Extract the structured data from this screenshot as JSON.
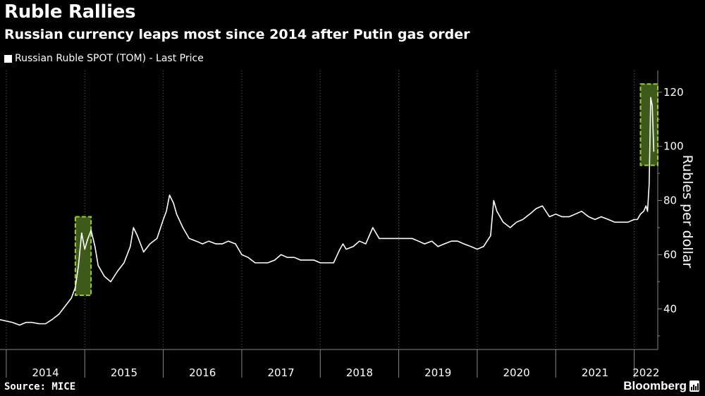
{
  "title": "Ruble Rallies",
  "subtitle": "Russian currency leaps most since 2014 after Putin gas order",
  "legend": {
    "label": "Russian Ruble SPOT (TOM) - Last Price"
  },
  "source": "Source: MICE",
  "brand": "Bloomberg",
  "colors": {
    "background": "#000000",
    "line": "#ffffff",
    "highlight_fill": "#3d5a1a",
    "highlight_border": "#9acd32"
  },
  "chart_data": {
    "type": "line",
    "title": "Ruble Rallies",
    "ylabel": "Rubles per dollar",
    "ylim": [
      25,
      128
    ],
    "yticks": [
      40,
      60,
      80,
      100,
      120
    ],
    "xlim": [
      2013.92,
      2022.3
    ],
    "xticks": [
      "2014",
      "2015",
      "2016",
      "2017",
      "2018",
      "2019",
      "2020",
      "2021",
      "2022"
    ],
    "grid": "vertical dotted at year boundaries",
    "series": [
      {
        "name": "Russian Ruble SPOT (TOM) - Last Price",
        "x": [
          2013.92,
          2014.0,
          2014.08,
          2014.17,
          2014.25,
          2014.33,
          2014.42,
          2014.5,
          2014.58,
          2014.67,
          2014.75,
          2014.83,
          2014.88,
          2014.92,
          2014.96,
          2015.0,
          2015.04,
          2015.08,
          2015.13,
          2015.17,
          2015.25,
          2015.33,
          2015.42,
          2015.5,
          2015.58,
          2015.62,
          2015.67,
          2015.75,
          2015.83,
          2015.92,
          2016.0,
          2016.04,
          2016.08,
          2016.13,
          2016.17,
          2016.25,
          2016.33,
          2016.42,
          2016.5,
          2016.58,
          2016.67,
          2016.75,
          2016.83,
          2016.92,
          2017.0,
          2017.08,
          2017.17,
          2017.25,
          2017.33,
          2017.42,
          2017.5,
          2017.58,
          2017.67,
          2017.75,
          2017.83,
          2017.92,
          2018.0,
          2018.08,
          2018.17,
          2018.25,
          2018.29,
          2018.33,
          2018.42,
          2018.5,
          2018.58,
          2018.67,
          2018.75,
          2018.83,
          2018.92,
          2019.0,
          2019.08,
          2019.17,
          2019.25,
          2019.33,
          2019.42,
          2019.5,
          2019.58,
          2019.67,
          2019.75,
          2019.83,
          2019.92,
          2020.0,
          2020.08,
          2020.17,
          2020.21,
          2020.25,
          2020.33,
          2020.42,
          2020.5,
          2020.58,
          2020.67,
          2020.75,
          2020.83,
          2020.92,
          2021.0,
          2021.08,
          2021.17,
          2021.25,
          2021.33,
          2021.42,
          2021.5,
          2021.58,
          2021.67,
          2021.75,
          2021.83,
          2021.92,
          2022.0,
          2022.04,
          2022.08,
          2022.12,
          2022.15,
          2022.17,
          2022.19,
          2022.21,
          2022.23,
          2022.25
        ],
        "y": [
          36,
          35.5,
          35,
          34,
          35,
          35,
          34.5,
          34.5,
          36,
          38,
          41,
          44,
          48,
          56,
          68,
          62,
          66,
          69,
          63,
          56,
          52,
          50,
          54,
          57,
          63,
          70,
          67,
          61,
          64,
          66,
          73,
          76,
          82,
          79,
          75,
          70,
          66,
          65,
          64,
          65,
          64,
          64,
          65,
          64,
          60,
          59,
          57,
          57,
          57,
          58,
          60,
          59,
          59,
          58,
          58,
          58,
          57,
          57,
          57,
          62,
          64,
          62,
          63,
          65,
          64,
          70,
          66,
          66,
          66,
          66,
          66,
          66,
          65,
          64,
          65,
          63,
          64,
          65,
          65,
          64,
          63,
          62,
          63,
          67,
          80,
          76,
          72,
          70,
          72,
          73,
          75,
          77,
          78,
          74,
          75,
          74,
          74,
          75,
          76,
          74,
          73,
          74,
          73,
          72,
          72,
          72,
          73,
          73,
          75,
          76,
          78,
          76,
          86,
          118,
          115,
          98
        ]
      }
    ],
    "highlights": [
      {
        "x": [
          2014.88,
          2015.08
        ],
        "y": [
          45,
          74
        ]
      },
      {
        "x": [
          2022.08,
          2022.3
        ],
        "y": [
          93,
          123
        ]
      }
    ]
  }
}
